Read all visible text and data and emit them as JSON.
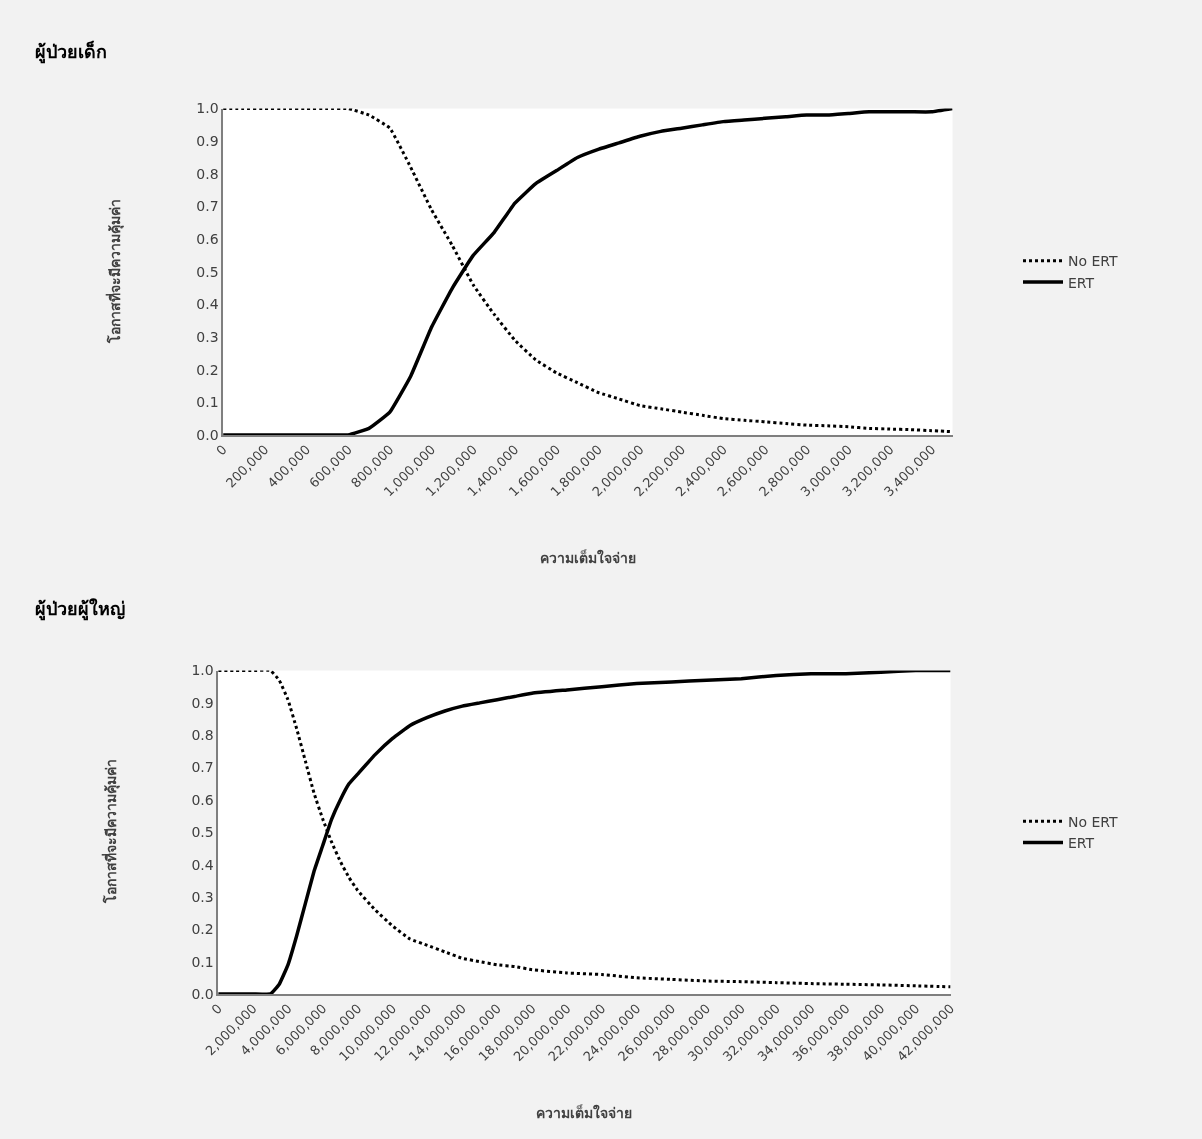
{
  "chart_data": [
    {
      "type": "line",
      "title": "ผู้ป่วยเด็ก",
      "xlabel": "ความเต็มใจจ่าย",
      "ylabel": "โอกาสที่จะมีความคุ้มค่า",
      "legend": "right",
      "grid": false,
      "x": [
        0,
        100000,
        200000,
        300000,
        400000,
        500000,
        600000,
        700000,
        800000,
        900000,
        1000000,
        1100000,
        1200000,
        1300000,
        1400000,
        1500000,
        1600000,
        1700000,
        1800000,
        1900000,
        2000000,
        2100000,
        2200000,
        2300000,
        2400000,
        2500000,
        2600000,
        2700000,
        2800000,
        2900000,
        3000000,
        3100000,
        3200000,
        3300000,
        3400000,
        3500000
      ],
      "xlim": [
        0,
        3500000
      ],
      "xticks": [
        {
          "value": 0,
          "label": "0"
        },
        {
          "value": 200000,
          "label": "200,000"
        },
        {
          "value": 400000,
          "label": "400,000"
        },
        {
          "value": 600000,
          "label": "600,000"
        },
        {
          "value": 800000,
          "label": "800,000"
        },
        {
          "value": 1000000,
          "label": "1,000,000"
        },
        {
          "value": 1200000,
          "label": "1,200,000"
        },
        {
          "value": 1400000,
          "label": "1,400,000"
        },
        {
          "value": 1600000,
          "label": "1,600,000"
        },
        {
          "value": 1800000,
          "label": "1,800,000"
        },
        {
          "value": 2000000,
          "label": "2,000,000"
        },
        {
          "value": 2200000,
          "label": "2,200,000"
        },
        {
          "value": 2400000,
          "label": "2,400,000"
        },
        {
          "value": 2600000,
          "label": "2,600,000"
        },
        {
          "value": 2800000,
          "label": "2,800,000"
        },
        {
          "value": 3000000,
          "label": "3,000,000"
        },
        {
          "value": 3200000,
          "label": "3,200,000"
        },
        {
          "value": 3400000,
          "label": "3,400,000"
        }
      ],
      "ylim": [
        0,
        1
      ],
      "yticks": [
        {
          "value": 0,
          "label": "0.0"
        },
        {
          "value": 0.1,
          "label": "0.1"
        },
        {
          "value": 0.2,
          "label": "0.2"
        },
        {
          "value": 0.3,
          "label": "0.3"
        },
        {
          "value": 0.4,
          "label": "0.4"
        },
        {
          "value": 0.5,
          "label": "0.5"
        },
        {
          "value": 0.6,
          "label": "0.6"
        },
        {
          "value": 0.7,
          "label": "0.7"
        },
        {
          "value": 0.8,
          "label": "0.8"
        },
        {
          "value": 0.9,
          "label": "0.9"
        },
        {
          "value": 1,
          "label": "1.0"
        }
      ],
      "series": [
        {
          "name": "No ERT",
          "color": "#000000",
          "line_style": "dotted",
          "values": [
            1,
            1,
            1,
            1,
            1,
            1,
            1,
            0.98,
            0.94,
            0.82,
            0.69,
            0.58,
            0.46,
            0.37,
            0.29,
            0.23,
            0.19,
            0.16,
            0.13,
            0.11,
            0.09,
            0.08,
            0.07,
            0.06,
            0.05,
            0.045,
            0.04,
            0.035,
            0.03,
            0.028,
            0.025,
            0.02,
            0.018,
            0.016,
            0.013,
            0.01
          ]
        },
        {
          "name": "ERT",
          "color": "#000000",
          "line_style": "solid",
          "values": [
            0,
            0,
            0,
            0,
            0,
            0,
            0,
            0.02,
            0.07,
            0.18,
            0.33,
            0.45,
            0.55,
            0.62,
            0.71,
            0.77,
            0.81,
            0.85,
            0.875,
            0.895,
            0.915,
            0.93,
            0.94,
            0.95,
            0.96,
            0.965,
            0.97,
            0.975,
            0.98,
            0.98,
            0.985,
            0.99,
            0.99,
            0.99,
            0.99,
            1.0
          ]
        }
      ]
    },
    {
      "type": "line",
      "title": "ผู้ป่วยผู้ใหญ่",
      "xlabel": "ความเต็มใจจ่าย",
      "ylabel": "โอกาสที่จะมีความคุ้มค่า",
      "legend": "right",
      "grid": false,
      "x": [
        0,
        1000000,
        2000000,
        3000000,
        3500000,
        4000000,
        4500000,
        5000000,
        5500000,
        6000000,
        6500000,
        7000000,
        7500000,
        8000000,
        9000000,
        10000000,
        11000000,
        12000000,
        13000000,
        14000000,
        15000000,
        16000000,
        17000000,
        18000000,
        20000000,
        22000000,
        24000000,
        26000000,
        28000000,
        30000000,
        32000000,
        34000000,
        36000000,
        38000000,
        40000000,
        42000000
      ],
      "xlim": [
        0,
        42000000
      ],
      "xticks": [
        {
          "value": 0,
          "label": "0"
        },
        {
          "value": 2000000,
          "label": "2,000,000"
        },
        {
          "value": 4000000,
          "label": "4,000,000"
        },
        {
          "value": 6000000,
          "label": "6,000,000"
        },
        {
          "value": 8000000,
          "label": "8,000,000"
        },
        {
          "value": 10000000,
          "label": "10,000,000"
        },
        {
          "value": 12000000,
          "label": "12,000,000"
        },
        {
          "value": 14000000,
          "label": "14,000,000"
        },
        {
          "value": 16000000,
          "label": "16,000,000"
        },
        {
          "value": 18000000,
          "label": "18,000,000"
        },
        {
          "value": 20000000,
          "label": "20,000,000"
        },
        {
          "value": 22000000,
          "label": "22,000,000"
        },
        {
          "value": 24000000,
          "label": "24,000,000"
        },
        {
          "value": 26000000,
          "label": "26,000,000"
        },
        {
          "value": 28000000,
          "label": "28,000,000"
        },
        {
          "value": 30000000,
          "label": "30,000,000"
        },
        {
          "value": 32000000,
          "label": "32,000,000"
        },
        {
          "value": 34000000,
          "label": "34,000,000"
        },
        {
          "value": 36000000,
          "label": "36,000,000"
        },
        {
          "value": 38000000,
          "label": "38,000,000"
        },
        {
          "value": 40000000,
          "label": "40,000,000"
        },
        {
          "value": 42000000,
          "label": "42,000,000"
        }
      ],
      "ylim": [
        0,
        1
      ],
      "yticks": [
        {
          "value": 0,
          "label": "0.0"
        },
        {
          "value": 0.1,
          "label": "0.1"
        },
        {
          "value": 0.2,
          "label": "0.2"
        },
        {
          "value": 0.3,
          "label": "0.3"
        },
        {
          "value": 0.4,
          "label": "0.4"
        },
        {
          "value": 0.5,
          "label": "0.5"
        },
        {
          "value": 0.6,
          "label": "0.6"
        },
        {
          "value": 0.7,
          "label": "0.7"
        },
        {
          "value": 0.8,
          "label": "0.8"
        },
        {
          "value": 0.9,
          "label": "0.9"
        },
        {
          "value": 1,
          "label": "1.0"
        }
      ],
      "series": [
        {
          "name": "No ERT",
          "color": "#000000",
          "line_style": "dotted",
          "values": [
            1,
            1,
            1,
            1,
            0.97,
            0.91,
            0.82,
            0.72,
            0.62,
            0.54,
            0.47,
            0.41,
            0.36,
            0.32,
            0.26,
            0.21,
            0.17,
            0.15,
            0.13,
            0.11,
            0.1,
            0.09,
            0.085,
            0.075,
            0.065,
            0.06,
            0.05,
            0.045,
            0.04,
            0.038,
            0.035,
            0.032,
            0.03,
            0.028,
            0.025,
            0.022
          ]
        },
        {
          "name": "ERT",
          "color": "#000000",
          "line_style": "solid",
          "values": [
            0,
            0,
            0,
            0,
            0.03,
            0.09,
            0.18,
            0.28,
            0.38,
            0.46,
            0.54,
            0.6,
            0.65,
            0.68,
            0.74,
            0.79,
            0.83,
            0.855,
            0.875,
            0.89,
            0.9,
            0.91,
            0.92,
            0.93,
            0.94,
            0.95,
            0.96,
            0.965,
            0.97,
            0.975,
            0.985,
            0.99,
            0.99,
            0.995,
            1.0,
            1.0
          ]
        }
      ]
    }
  ]
}
